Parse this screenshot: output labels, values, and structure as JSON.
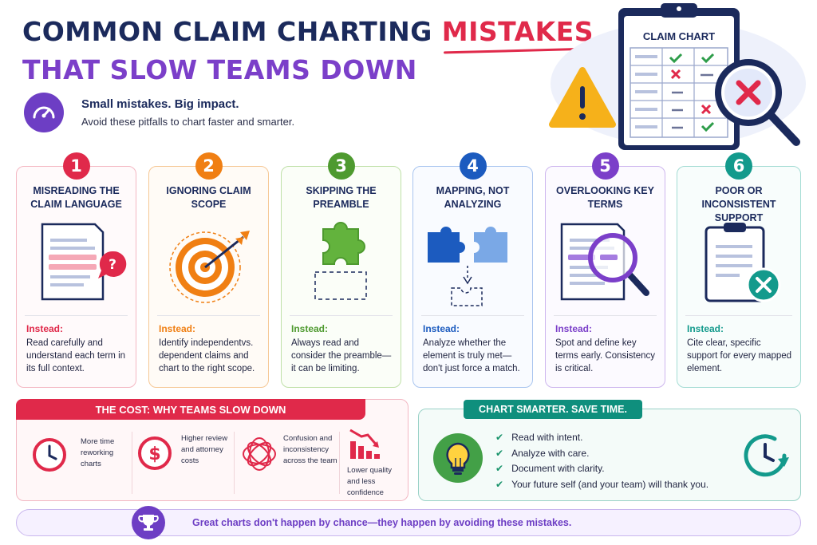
{
  "header": {
    "title_line1_pre": "COMMON CLAIM CHARTING ",
    "title_line1_accent": "MISTAKES",
    "title_line2": "THAT SLOW TEAMS DOWN",
    "intro_heading": "Small mistakes. Big impact.",
    "intro_sub": "Avoid these pitfalls to chart faster and smarter.",
    "chart_card_label": "CLAIM CHART"
  },
  "cards": [
    {
      "num": "1",
      "title": "MISREADING THE CLAIM LANGUAGE",
      "instead": "Instead:",
      "desc": "Read carefully and understand each term in its full context.",
      "color": "#e0294a",
      "light": "#f4b8c3"
    },
    {
      "num": "2",
      "title": "IGNORING CLAIM SCOPE",
      "instead": "Instead:",
      "desc": "Identify independentvs. dependent claims and chart to the right scope.",
      "color": "#f07f13",
      "light": "#f6c896"
    },
    {
      "num": "3",
      "title": "SKIPPING THE PREAMBLE",
      "instead": "Instead:",
      "desc": "Always read and consider the preamble—it can be limiting.",
      "color": "#4e9a2f",
      "light": "#bfe0a8"
    },
    {
      "num": "4",
      "title": "MAPPING, NOT ANALYZING",
      "instead": "Instead:",
      "desc": "Analyze whether the element is truly met—don't just force a match.",
      "color": "#1c5bbf",
      "light": "#a9c5ef"
    },
    {
      "num": "5",
      "title": "OVERLOOKING KEY TERMS",
      "instead": "Instead:",
      "desc": "Spot and define key terms early. Consistency is critical.",
      "color": "#7b3fc9",
      "light": "#cdb6ee"
    },
    {
      "num": "6",
      "title": "POOR OR INCONSISTENT SUPPORT",
      "instead": "Instead:",
      "desc": "Cite clear, specific support for every mapped element.",
      "color": "#139a8c",
      "light": "#a4dcd4"
    }
  ],
  "cost": {
    "title": "THE COST: WHY TEAMS SLOW DOWN",
    "items": [
      {
        "label": "More time reworking charts"
      },
      {
        "label": "Higher review and attorney costs"
      },
      {
        "label": "Confusion and inconsistency across the team"
      },
      {
        "label": "Lower quality and less confidence"
      }
    ]
  },
  "smart": {
    "title": "CHART SMARTER. SAVE TIME.",
    "items": [
      "Read with intent.",
      "Analyze with care.",
      "Document with clarity.",
      "Your future self (and your team) will thank you."
    ]
  },
  "footer": {
    "text": "Great charts don't happen by chance—they happen by avoiding these mistakes."
  },
  "icons": [
    "gauge-icon",
    "clipboard-icon",
    "warning-icon",
    "magnifier-icon",
    "document-icon",
    "target-icon",
    "puzzle-icon",
    "clock-icon",
    "dollar-icon",
    "tangle-icon",
    "declining-chart-icon",
    "lightbulb-icon",
    "trophy-icon"
  ]
}
